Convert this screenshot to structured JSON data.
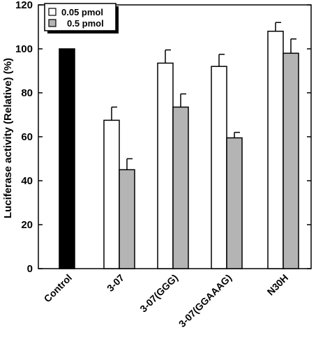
{
  "chart_data": {
    "type": "bar",
    "title": "",
    "xlabel": "",
    "ylabel": "Luciferase activity (Relative) (%)",
    "ylim": [
      0,
      120
    ],
    "yticks": [
      0,
      20,
      40,
      60,
      80,
      100,
      120
    ],
    "grid": false,
    "legend_position": "top-left",
    "categories": [
      "Control",
      "3-07",
      "3-07(GGG)",
      "3-07(GGAAAG)",
      "N30H"
    ],
    "control": {
      "value": 100,
      "color": "#000000"
    },
    "series": [
      {
        "name": "0.05 pmol",
        "color": "#ffffff",
        "values": [
          null,
          67.5,
          93.5,
          92,
          108
        ],
        "errors": [
          null,
          6,
          6,
          5.5,
          4
        ]
      },
      {
        "name": "0.5 pmol",
        "color": "#b4b4b4",
        "values": [
          null,
          45,
          73.5,
          59.5,
          98
        ],
        "errors": [
          null,
          5,
          6,
          2.5,
          6.5
        ]
      }
    ]
  }
}
